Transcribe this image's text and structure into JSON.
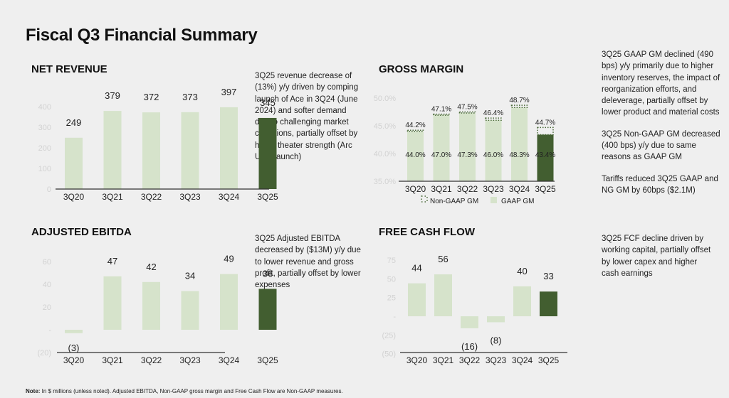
{
  "title": "Fiscal Q3 Financial Summary",
  "colors": {
    "bar_light": "#d6e3cb",
    "bar_dark": "#425e30",
    "axis": "#333333",
    "tick": "#d2d2d2",
    "dotted": "#4a6a38"
  },
  "sections": {
    "net_revenue": {
      "title": "NET REVENUE",
      "commentary": "3Q25 revenue decrease of (13%) y/y driven by comping launch of Ace in 3Q24 (June 2024) and softer demand due to challenging market conditions, partially offset by home theater strength (Arc Ultra launch)"
    },
    "gross_margin": {
      "title": "GROSS MARGIN",
      "commentary": [
        "3Q25 GAAP GM declined (490 bps) y/y primarily due to higher inventory reserves, the impact of reorganization efforts, and deleverage, partially offset by lower product and material costs",
        "3Q25 Non-GAAP GM decreased (400 bps) y/y due to same reasons as GAAP GM",
        "Tariffs reduced 3Q25 GAAP and NG GM by 60bps ($2.1M)"
      ]
    },
    "adjusted_ebitda": {
      "title": "ADJUSTED EBITDA",
      "commentary": "3Q25 Adjusted EBITDA decreased by ($13M) y/y due to lower revenue and gross profit, partially offset by lower expenses"
    },
    "free_cash_flow": {
      "title": "FREE CASH FLOW",
      "commentary": "3Q25 FCF decline driven by working capital, partially offset by lower capex and higher cash earnings"
    }
  },
  "footnote": {
    "label": "Note:",
    "text": " In $ millions (unless noted). Adjusted EBITDA, Non-GAAP gross margin and Free Cash Flow are Non-GAAP measures."
  },
  "chart_data": [
    {
      "id": "net_revenue",
      "type": "bar",
      "title": "NET REVENUE",
      "categories": [
        "3Q20",
        "3Q21",
        "3Q22",
        "3Q23",
        "3Q24",
        "3Q25"
      ],
      "values": [
        249,
        379,
        372,
        373,
        397,
        345
      ],
      "labels": [
        "249",
        "379",
        "372",
        "373",
        "397",
        "345"
      ],
      "highlight_index": 5,
      "yticks": [
        0,
        100,
        200,
        300,
        400
      ],
      "ytick_labels": [
        "0",
        "100",
        "200",
        "300",
        "400"
      ],
      "ylim": [
        0,
        400
      ],
      "xlabel": "",
      "ylabel": "",
      "grid": false
    },
    {
      "id": "gross_margin",
      "type": "bar",
      "title": "GROSS MARGIN",
      "categories": [
        "3Q20",
        "3Q21",
        "3Q22",
        "3Q23",
        "3Q24",
        "3Q25"
      ],
      "series": [
        {
          "name": "GAAP GM",
          "values": [
            44.0,
            47.0,
            47.3,
            46.0,
            48.3,
            43.4
          ],
          "labels": [
            "44.0%",
            "47.0%",
            "47.3%",
            "46.0%",
            "48.3%",
            "43.4%"
          ]
        },
        {
          "name": "Non-GAAP GM",
          "values": [
            44.2,
            47.1,
            47.5,
            46.4,
            48.7,
            44.7
          ],
          "labels": [
            "44.2%",
            "47.1%",
            "47.5%",
            "46.4%",
            "48.7%",
            "44.7%"
          ]
        }
      ],
      "highlight_index": 5,
      "yticks": [
        35,
        40,
        45,
        50
      ],
      "ytick_labels": [
        "35.0%",
        "40.0%",
        "45.0%",
        "50.0%"
      ],
      "ylim": [
        35,
        50
      ],
      "legend": [
        "Non-GAAP GM",
        "GAAP GM"
      ],
      "legend_position": "bottom",
      "xlabel": "",
      "ylabel": "",
      "grid": false
    },
    {
      "id": "adjusted_ebitda",
      "type": "bar",
      "title": "ADJUSTED EBITDA",
      "categories": [
        "3Q20",
        "3Q21",
        "3Q22",
        "3Q23",
        "3Q24",
        "3Q25"
      ],
      "values": [
        -3,
        47,
        42,
        34,
        49,
        36
      ],
      "labels": [
        "(3)",
        "47",
        "42",
        "34",
        "49",
        "36"
      ],
      "highlight_index": 5,
      "yticks": [
        -20,
        0,
        20,
        40,
        60
      ],
      "ytick_labels": [
        "(20)",
        "-",
        "20",
        "40",
        "60"
      ],
      "ylim": [
        -20,
        60
      ],
      "xlabel": "",
      "ylabel": "",
      "grid": false
    },
    {
      "id": "free_cash_flow",
      "type": "bar",
      "title": "FREE CASH FLOW",
      "categories": [
        "3Q20",
        "3Q21",
        "3Q22",
        "3Q23",
        "3Q24",
        "3Q25"
      ],
      "values": [
        44,
        56,
        -16,
        -8,
        40,
        33
      ],
      "labels": [
        "44",
        "56",
        "(16)",
        "(8)",
        "40",
        "33"
      ],
      "highlight_index": 5,
      "yticks": [
        -50,
        -25,
        0,
        25,
        50,
        75
      ],
      "ytick_labels": [
        "(50)",
        "(25)",
        "-",
        "25",
        "50",
        "75"
      ],
      "ylim": [
        -50,
        75
      ],
      "xlabel": "",
      "ylabel": "",
      "grid": false
    }
  ]
}
